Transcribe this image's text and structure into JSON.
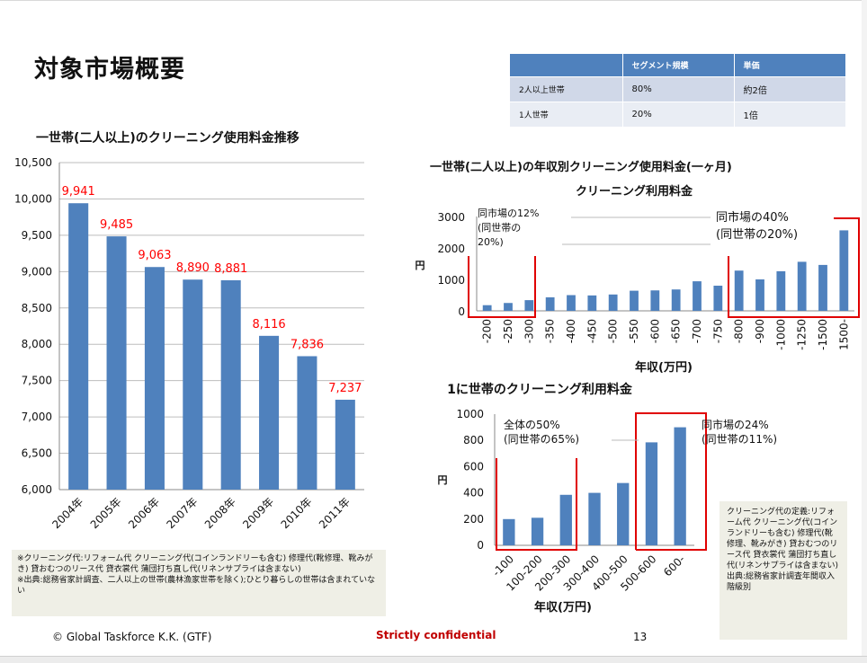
{
  "slide": {
    "title": "対象市場概要",
    "footer_copyright": "© Global Taskforce K.K. (GTF)",
    "footer_confidential": "Strictly confidential",
    "page_number": "13",
    "colors": {
      "bar": "#4f81bd",
      "highlight": "#e00000",
      "label": "#ff0000",
      "table_header": "#4f81bd"
    }
  },
  "segment_table": {
    "headers": [
      "",
      "セグメント規模",
      "単価"
    ],
    "rows": [
      [
        "2人以上世帯",
        "80%",
        "約2倍"
      ],
      [
        "1人世帯",
        "20%",
        "1倍"
      ]
    ]
  },
  "chart1": {
    "title_outer": "一世帯(二人以上)のクリーニング使用料金推移",
    "note": "※クリーニング代:リフォーム代 クリーニング代(コインランドリーも含む) 修理代(靴修理、靴みがき) 貸おむつのリース代 貸衣裳代 蒲団打ち直し代(リネンサプライは含まない)\n※出典:総務省家計調査、二人以上の世帯(農林漁家世帯を除く);ひとり暮らしの世帯は含まれていない"
  },
  "chart2": {
    "heading": "一世帯(二人以上)の年収別クリーニング使用料金(一ヶ月)",
    "title": "クリーニング利用料金",
    "ylabel": "円",
    "xlabel": "年収(万円)",
    "annotation_left": [
      "同市場の12%",
      "(同世帯の",
      "20%)"
    ],
    "annotation_right": [
      "同市場の40%",
      "(同世帯の20%)"
    ]
  },
  "chart3": {
    "title": "1に世帯のクリーニング利用料金",
    "ylabel": "円",
    "xlabel": "年収(万円)",
    "annotation_left": [
      "全体の50%",
      "(同世帯の65%)"
    ],
    "annotation_right": [
      "同市場の24%",
      "(同世帯の11%)"
    ],
    "note": "クリーニング代の定義:リフォーム代 クリーニング代(コインランドリーも含む) 修理代(靴修理、靴みがき) 貸おむつのリース代 貸衣裳代 蒲団打ち直し代(リネンサプライは含まない)\n出典:総務省家計調査年間収入階級別"
  },
  "chart_data": [
    {
      "type": "bar",
      "categories": [
        "2004年",
        "2005年",
        "2006年",
        "2007年",
        "2008年",
        "2009年",
        "2010年",
        "2011年"
      ],
      "values": [
        9941,
        9485,
        9063,
        8890,
        8881,
        8116,
        7836,
        7237
      ],
      "data_labels": [
        "9,941",
        "9,485",
        "9,063",
        "8,890",
        "8,881",
        "8,116",
        "7,836",
        "7,237"
      ],
      "yticks": [
        "6,000",
        "6,500",
        "7,000",
        "7,500",
        "8,000",
        "8,500",
        "9,000",
        "9,500",
        "10,000",
        "10,500"
      ],
      "ylim": [
        6000,
        10500
      ],
      "grid": true,
      "legend": "none"
    },
    {
      "type": "bar",
      "title": "クリーニング利用料金",
      "categories": [
        "-200",
        "-250",
        "-300",
        "-350",
        "-400",
        "-450",
        "-500",
        "-550",
        "-600",
        "-650",
        "-700",
        "-750",
        "-800",
        "-900",
        "-1000",
        "-1250",
        "-1500",
        "1500-"
      ],
      "values": [
        180,
        250,
        340,
        430,
        500,
        490,
        520,
        640,
        650,
        680,
        940,
        800,
        1280,
        1000,
        1260,
        1560,
        1460,
        2560
      ],
      "yticks": [
        "0",
        "1000",
        "2000",
        "3000"
      ],
      "ylim": [
        0,
        3000
      ],
      "ylabel": "円",
      "xlabel": "年収(万円)",
      "grid": false,
      "legend": "none"
    },
    {
      "type": "bar",
      "title": "1に世帯のクリーニング利用料金",
      "categories": [
        "-100",
        "100-200",
        "200-300",
        "300-400",
        "400-500",
        "500-600",
        "600-"
      ],
      "values": [
        200,
        210,
        385,
        400,
        475,
        785,
        900
      ],
      "yticks": [
        "0",
        "200",
        "400",
        "600",
        "800",
        "1000"
      ],
      "ylim": [
        0,
        1000
      ],
      "ylabel": "円",
      "xlabel": "年収(万円)",
      "grid": false,
      "legend": "none"
    }
  ]
}
